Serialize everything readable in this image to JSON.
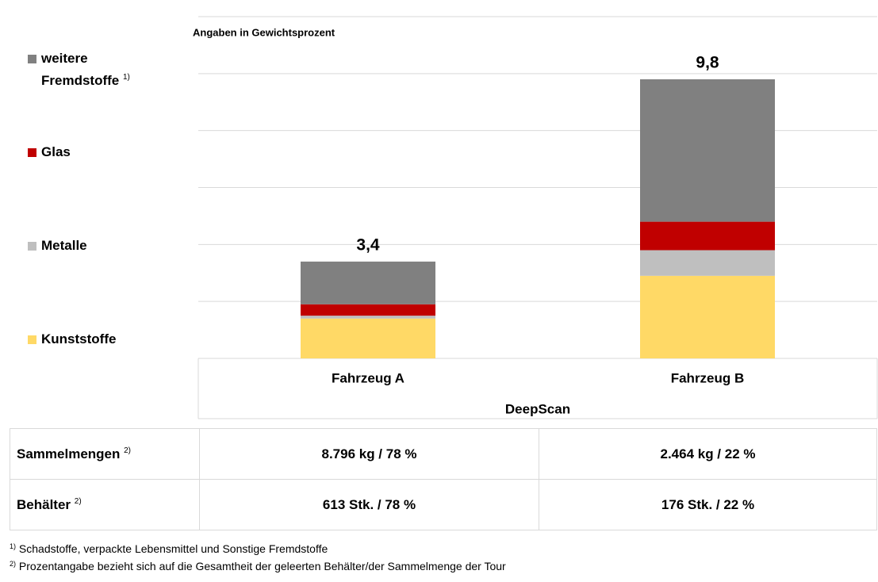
{
  "chart_data": {
    "type": "bar",
    "stacked": true,
    "subtitle": "Angaben in Gewichtsprozent",
    "categories": [
      "Fahrzeug A",
      "Fahrzeug B"
    ],
    "xlabel": "DeepScan",
    "series": [
      {
        "name": "Kunststoffe",
        "color": "#ffd966",
        "values": [
          1.4,
          2.9
        ]
      },
      {
        "name": "Metalle",
        "color": "#bfbfbf",
        "values": [
          0.1,
          0.9
        ]
      },
      {
        "name": "Glas",
        "color": "#c00000",
        "values": [
          0.4,
          1.0
        ]
      },
      {
        "name": "weitere Fremdstoffe",
        "note": "1)",
        "color": "#808080",
        "values": [
          1.5,
          5.0
        ]
      }
    ],
    "totals": [
      3.4,
      9.8
    ],
    "total_labels": [
      "3,4",
      "9,8"
    ],
    "ylim": [
      0,
      12
    ],
    "yticks": [
      0,
      2,
      4,
      6,
      8,
      10,
      12
    ],
    "grid": true,
    "legend": "left"
  },
  "table": {
    "rows": [
      {
        "label": "Sammelmengen",
        "note": "2)",
        "cells": [
          "8.796 kg / 78 %",
          "2.464 kg / 22 %"
        ]
      },
      {
        "label": "Behälter",
        "note": "2)",
        "cells": [
          "613 Stk. / 78 %",
          "176 Stk. / 22 %"
        ]
      }
    ]
  },
  "footnotes": [
    {
      "mark": "1)",
      "text": "Schadstoffe, verpackte Lebensmittel und Sonstige Fremdstoffe"
    },
    {
      "mark": "2)",
      "text": "Prozentangabe bezieht sich auf die Gesamtheit der geleerten Behälter/der Sammelmenge der Tour"
    }
  ]
}
